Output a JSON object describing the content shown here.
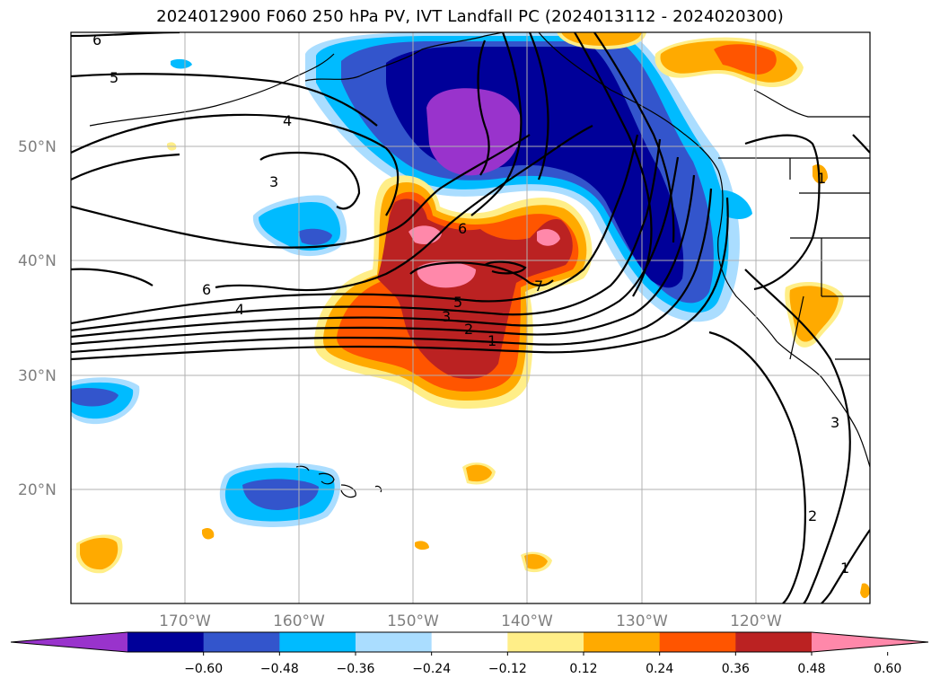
{
  "figure": {
    "title": "2024012900 F060 250 hPa PV, IVT Landfall PC (2024013112 - 2024020300)"
  },
  "map": {
    "projection": "PlateCarree",
    "lon_range": [
      -180,
      -110
    ],
    "lat_range": [
      10,
      60
    ],
    "lat_ticks": [
      {
        "value": 20,
        "label": "20°N"
      },
      {
        "value": 30,
        "label": "30°N"
      },
      {
        "value": 40,
        "label": "40°N"
      },
      {
        "value": 50,
        "label": "50°N"
      }
    ],
    "lon_ticks": [
      {
        "value": -170,
        "label": "170°W"
      },
      {
        "value": -160,
        "label": "160°W"
      },
      {
        "value": -150,
        "label": "150°W"
      },
      {
        "value": -140,
        "label": "140°W"
      },
      {
        "value": -130,
        "label": "130°W"
      },
      {
        "value": -120,
        "label": "120°W"
      }
    ],
    "gridlines": true,
    "contour_labels": [
      "6",
      "5",
      "4",
      "3",
      "6",
      "4",
      "6",
      "5",
      "3",
      "2",
      "1",
      "7",
      "3",
      "2",
      "1",
      "1"
    ]
  },
  "colorbar": {
    "orientation": "horizontal",
    "extend": "both",
    "tick_labels": [
      "−0.60",
      "−0.48",
      "−0.36",
      "−0.24",
      "−0.12",
      "0.12",
      "0.24",
      "0.36",
      "0.48",
      "0.60"
    ],
    "colors": [
      "#9933cc",
      "#000099",
      "#3355cc",
      "#00bbff",
      "#aaddff",
      "#ffffff",
      "#ffee88",
      "#ffaa00",
      "#ff5500",
      "#bb2222",
      "#ff88aa"
    ]
  }
}
